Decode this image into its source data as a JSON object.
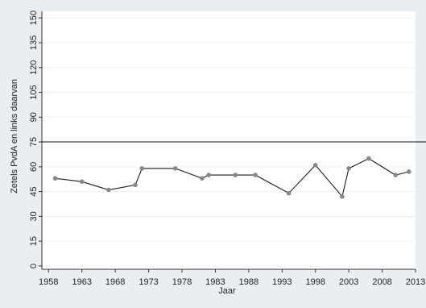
{
  "chart_data": {
    "type": "line",
    "title": "",
    "xlabel": "Jaar",
    "ylabel": "Zetels PvdA en links daarvan",
    "xlim": [
      1957,
      2013
    ],
    "ylim": [
      -2,
      154
    ],
    "xticks": [
      1958,
      1963,
      1968,
      1973,
      1978,
      1983,
      1988,
      1993,
      1998,
      2003,
      2008,
      2013
    ],
    "yticks": [
      0,
      15,
      30,
      45,
      60,
      75,
      90,
      105,
      120,
      135,
      150
    ],
    "grid": true,
    "legend": "none",
    "reference_line": {
      "y": 75
    },
    "series": [
      {
        "x": [
          1959,
          1963,
          1967,
          1971,
          1972,
          1977,
          1981,
          1982,
          1986,
          1989,
          1994,
          1998,
          2002,
          2003,
          2006,
          2010,
          2012
        ],
        "values": [
          53,
          51,
          46,
          49,
          59,
          59,
          53,
          55,
          55,
          55,
          44,
          61,
          42,
          59,
          65,
          55,
          57
        ]
      }
    ],
    "colors": {
      "background": "#e9eef1",
      "plot_area": "#ffffff",
      "line": "#1a1a1a",
      "marker": "#888888",
      "grid": "#eef1f4"
    }
  }
}
